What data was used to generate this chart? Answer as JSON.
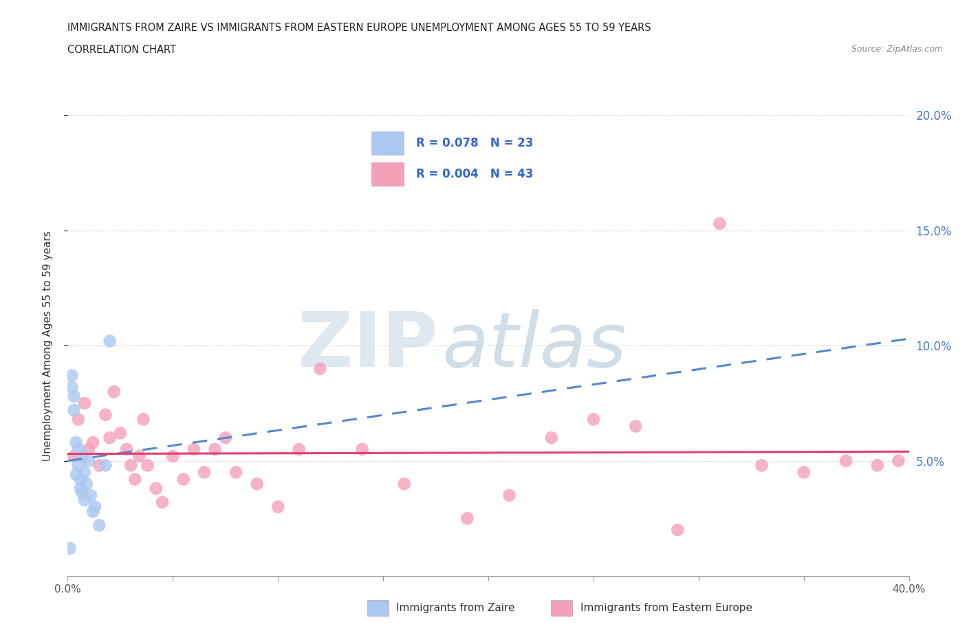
{
  "title_line1": "IMMIGRANTS FROM ZAIRE VS IMMIGRANTS FROM EASTERN EUROPE UNEMPLOYMENT AMONG AGES 55 TO 59 YEARS",
  "title_line2": "CORRELATION CHART",
  "source": "Source: ZipAtlas.com",
  "ylabel": "Unemployment Among Ages 55 to 59 years",
  "xlim": [
    0.0,
    0.4
  ],
  "ylim": [
    0.0,
    0.2
  ],
  "ytick_positions": [
    0.05,
    0.1,
    0.15,
    0.2
  ],
  "ytick_labels": [
    "5.0%",
    "10.0%",
    "15.0%",
    "20.0%"
  ],
  "zaire_R": 0.078,
  "zaire_N": 23,
  "eastern_R": 0.004,
  "eastern_N": 43,
  "zaire_color": "#aac8f0",
  "eastern_color": "#f4a0b8",
  "zaire_trend_color": "#5588cc",
  "eastern_trend_color": "#e04070",
  "zaire_x": [
    0.001,
    0.002,
    0.002,
    0.003,
    0.003,
    0.004,
    0.004,
    0.005,
    0.005,
    0.006,
    0.006,
    0.007,
    0.007,
    0.008,
    0.008,
    0.009,
    0.01,
    0.011,
    0.012,
    0.013,
    0.015,
    0.018,
    0.02
  ],
  "zaire_y": [
    0.012,
    0.082,
    0.087,
    0.078,
    0.072,
    0.058,
    0.044,
    0.055,
    0.048,
    0.042,
    0.038,
    0.052,
    0.036,
    0.045,
    0.033,
    0.04,
    0.05,
    0.035,
    0.028,
    0.03,
    0.022,
    0.048,
    0.102
  ],
  "eastern_x": [
    0.003,
    0.005,
    0.008,
    0.01,
    0.012,
    0.015,
    0.018,
    0.02,
    0.022,
    0.025,
    0.028,
    0.03,
    0.032,
    0.034,
    0.036,
    0.038,
    0.042,
    0.045,
    0.05,
    0.055,
    0.06,
    0.065,
    0.07,
    0.075,
    0.08,
    0.09,
    0.1,
    0.11,
    0.12,
    0.14,
    0.16,
    0.19,
    0.21,
    0.23,
    0.25,
    0.27,
    0.29,
    0.31,
    0.33,
    0.35,
    0.37,
    0.385,
    0.395
  ],
  "eastern_y": [
    0.052,
    0.068,
    0.075,
    0.055,
    0.058,
    0.048,
    0.07,
    0.06,
    0.08,
    0.062,
    0.055,
    0.048,
    0.042,
    0.052,
    0.068,
    0.048,
    0.038,
    0.032,
    0.052,
    0.042,
    0.055,
    0.045,
    0.055,
    0.06,
    0.045,
    0.04,
    0.03,
    0.055,
    0.09,
    0.055,
    0.04,
    0.025,
    0.035,
    0.06,
    0.068,
    0.065,
    0.02,
    0.153,
    0.048,
    0.045,
    0.05,
    0.048,
    0.05
  ],
  "zaire_trend_x0": 0.0,
  "zaire_trend_y0": 0.05,
  "zaire_trend_x1": 0.4,
  "zaire_trend_y1": 0.103,
  "eastern_trend_x0": 0.0,
  "eastern_trend_y0": 0.053,
  "eastern_trend_x1": 0.4,
  "eastern_trend_y1": 0.054
}
